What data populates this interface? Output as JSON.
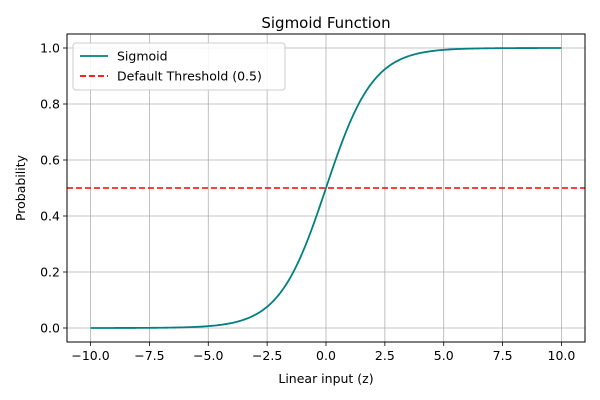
{
  "chart_data": {
    "type": "line",
    "title": "Sigmoid Function",
    "xlabel": "Linear input (z)",
    "ylabel": "Probability",
    "xlim": [
      -11,
      11
    ],
    "ylim": [
      -0.05,
      1.05
    ],
    "xticks": [
      -10.0,
      -7.5,
      -5.0,
      -2.5,
      0.0,
      2.5,
      5.0,
      7.5,
      10.0
    ],
    "xtick_labels": [
      "−10.0",
      "−7.5",
      "−5.0",
      "−2.5",
      "0.0",
      "2.5",
      "5.0",
      "7.5",
      "10.0"
    ],
    "yticks": [
      0.0,
      0.2,
      0.4,
      0.6,
      0.8,
      1.0
    ],
    "ytick_labels": [
      "0.0",
      "0.2",
      "0.4",
      "0.6",
      "0.8",
      "1.0"
    ],
    "grid": true,
    "legend_position": "top-left",
    "series": [
      {
        "name": "Sigmoid",
        "color": "#008080",
        "style": "solid",
        "function": "sigmoid",
        "x": [
          -10,
          -9,
          -8,
          -7,
          -6,
          -5,
          -4,
          -3,
          -2.5,
          -2,
          -1.5,
          -1,
          -0.5,
          0,
          0.5,
          1,
          1.5,
          2,
          2.5,
          3,
          4,
          5,
          6,
          7,
          8,
          9,
          10
        ],
        "y": [
          5e-05,
          0.00012,
          0.00034,
          0.00091,
          0.00247,
          0.00669,
          0.018,
          0.047,
          0.076,
          0.119,
          0.182,
          0.269,
          0.378,
          0.5,
          0.622,
          0.731,
          0.818,
          0.881,
          0.924,
          0.953,
          0.982,
          0.993,
          0.998,
          0.999,
          1.0,
          1.0,
          1.0
        ]
      },
      {
        "name": "Default Threshold (0.5)",
        "color": "#ff0000",
        "style": "dashed",
        "type": "hline",
        "y": 0.5
      }
    ]
  }
}
